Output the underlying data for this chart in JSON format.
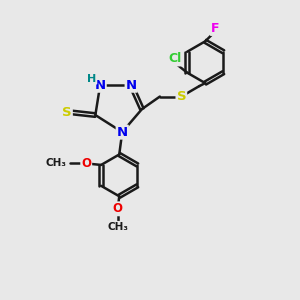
{
  "bg_color": "#e8e8e8",
  "bond_color": "#1a1a1a",
  "bond_width": 1.8,
  "dbo": 0.06,
  "atom_colors": {
    "N": "#0000ee",
    "S": "#cccc00",
    "Cl": "#33cc33",
    "F": "#ee00ee",
    "O": "#ee0000",
    "H": "#008888",
    "C": "#1a1a1a"
  },
  "fs": 9.5,
  "fig_size": 3.0,
  "dpi": 100
}
